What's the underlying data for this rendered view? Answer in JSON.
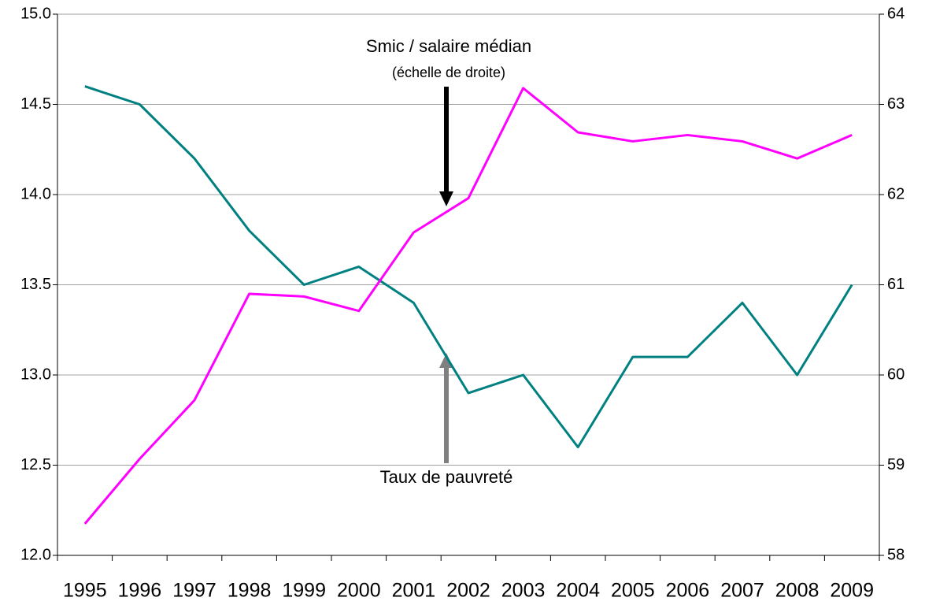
{
  "chart_data": {
    "type": "line",
    "categories": [
      "1995",
      "1996",
      "1997",
      "1998",
      "1999",
      "2000",
      "2001",
      "2002",
      "2003",
      "2004",
      "2005",
      "2006",
      "2007",
      "2008",
      "2009"
    ],
    "series": [
      {
        "color": "#008080",
        "values": [
          14.6,
          14.5,
          14.2,
          13.8,
          13.5,
          13.6,
          13.4,
          12.9,
          13.0,
          12.6,
          13.1,
          13.1,
          13.4,
          13.0,
          13.5
        ]
      },
      {
        "color": "#ff00ff",
        "axis": "y2",
        "values": [
          58.35,
          59.07,
          59.72,
          60.9,
          60.87,
          60.71,
          61.58,
          61.96,
          63.18,
          62.69,
          62.59,
          62.66,
          62.59,
          62.4,
          62.66
        ]
      }
    ],
    "ylim": [
      12,
      15
    ],
    "yticks": [
      {
        "value": 12,
        "label": "12.0"
      },
      {
        "value": 12.5,
        "label": "12.5"
      },
      {
        "value": 13,
        "label": "13.0"
      },
      {
        "value": 13.5,
        "label": "13.5"
      },
      {
        "value": 14,
        "label": "14.0"
      },
      {
        "value": 14.5,
        "label": "14.5"
      },
      {
        "value": 15,
        "label": "15.0"
      }
    ],
    "y2lim": [
      58,
      64
    ],
    "y2ticks": [
      58,
      59,
      60,
      61,
      62,
      63,
      64
    ],
    "grid": true,
    "annotations": [
      "Smic / salaire médian",
      "(échelle de droite)",
      "Taux de pauvreté"
    ]
  }
}
